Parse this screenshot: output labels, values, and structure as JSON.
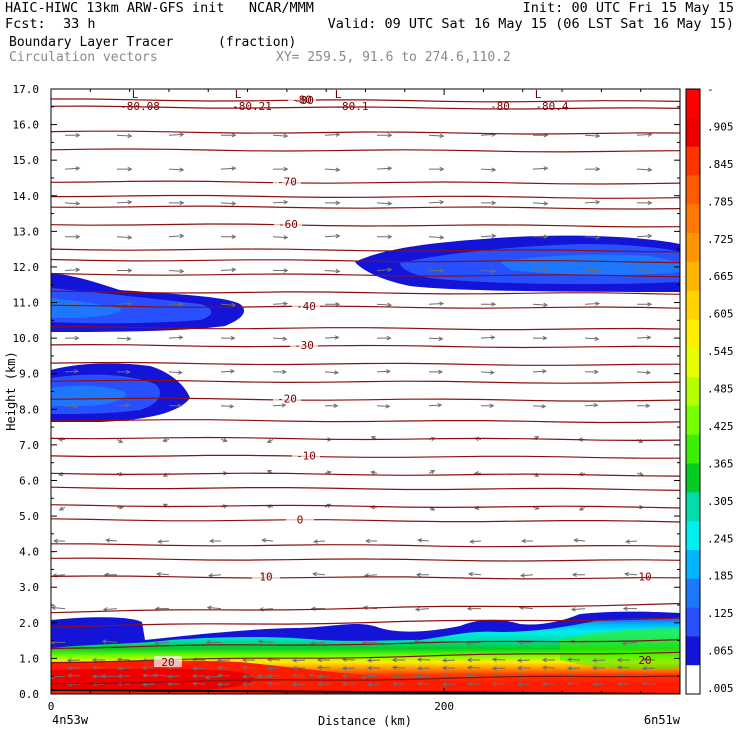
{
  "header": {
    "title_left": "HAIC-HIWC 13km ARW-GFS init   NCAR/MMM",
    "init": "Init: 00 UTC Fri 15 May 15",
    "fcst_label": "Fcst:",
    "fcst_value": "33 h",
    "valid": "Valid: 09 UTC Sat 16 May 15 (06 LST Sat 16 May 15)",
    "field1": "Boundary Layer Tracer",
    "field1_units": "(fraction)",
    "field2": "Circulation vectors",
    "xy": "XY= 259.5, 91.6 to 274.6,110.2"
  },
  "chart_data": {
    "type": "heatmap",
    "title": "Boundary Layer Tracer (fraction)",
    "xlabel": "Distance (km)",
    "ylabel": "Height (km)",
    "xlim": [
      0,
      320
    ],
    "ylim": [
      0,
      17
    ],
    "x_ticks": [
      {
        "value": 0,
        "label": "0"
      },
      {
        "value": 200,
        "label": "200"
      }
    ],
    "x_end_labels": [
      "4n53w",
      "6n51w"
    ],
    "y_ticks": [
      "0.0",
      "1.0",
      "2.0",
      "3.0",
      "4.0",
      "5.0",
      "6.0",
      "7.0",
      "8.0",
      "9.0",
      "10.0",
      "11.0",
      "12.0",
      "13.0",
      "14.0",
      "15.0",
      "16.0",
      "17.0"
    ],
    "colorbar": {
      "labels": [
        "-",
        ".905",
        ".845",
        ".785",
        ".725",
        ".665",
        ".605",
        ".545",
        ".485",
        ".425",
        ".365",
        ".305",
        ".245",
        ".185",
        ".125",
        ".065",
        ".005"
      ],
      "colors": [
        "#ff0000",
        "#ee0000",
        "#ff3300",
        "#ff5a00",
        "#ff7800",
        "#ff9600",
        "#ffb400",
        "#ffd200",
        "#ffee00",
        "#e6ff00",
        "#b4ff00",
        "#78ff00",
        "#3cee00",
        "#00cc22",
        "#00ddaa",
        "#00eeee",
        "#00b4ff",
        "#1e78ff",
        "#2850ff",
        "#1414d8",
        "#ffffff"
      ]
    },
    "tracer_regions": [
      {
        "name": "upper-right layer",
        "x_km": [
          152,
          320
        ],
        "z_km": [
          11.2,
          12.7
        ],
        "max": 0.2
      },
      {
        "name": "upper-left layer",
        "x_km": [
          0,
          97
        ],
        "z_km": [
          10.0,
          11.7
        ],
        "max": 0.2
      },
      {
        "name": "mid-left layer",
        "x_km": [
          0,
          70
        ],
        "z_km": [
          7.7,
          9.3
        ],
        "max": 0.3
      },
      {
        "name": "boundary layer",
        "x_km": [
          0,
          320
        ],
        "z_km": [
          0,
          2.2
        ],
        "max": 1.0
      }
    ],
    "temperature_contours": [
      {
        "label": "20",
        "z_km": 0.9
      },
      {
        "label": "10",
        "z_km": 3.3
      },
      {
        "label": "0",
        "z_km": 4.9
      },
      {
        "label": "-10",
        "z_km": 6.7
      },
      {
        "label": "-20",
        "z_km": 8.3
      },
      {
        "label": "-30",
        "z_km": 9.8
      },
      {
        "label": "-40",
        "z_km": 10.9
      },
      {
        "label": "-60",
        "z_km": 13.2
      },
      {
        "label": "-70",
        "z_km": 14.4
      },
      {
        "label": "-80",
        "z_km": 16.7
      }
    ],
    "minimum_labels": [
      "L",
      "-80.08",
      "L",
      "-80.21",
      "-80",
      "L",
      "-80.1",
      "-80",
      "L",
      "-80.4"
    ]
  }
}
